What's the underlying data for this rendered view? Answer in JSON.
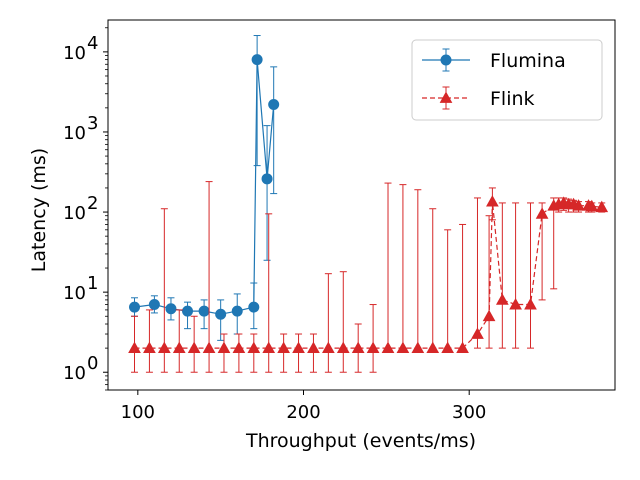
{
  "chart_data": {
    "type": "line",
    "xlabel": "Throughput (events/ms)",
    "ylabel": "Latency (ms)",
    "xlim": [
      82,
      388
    ],
    "ylim": [
      0.6,
      25000
    ],
    "yscale": "log",
    "xticks": [
      100,
      200,
      300
    ],
    "xtick_labels": [
      "100",
      "200",
      "300"
    ],
    "yticks": [
      1,
      10,
      100,
      1000,
      10000
    ],
    "ytick_labels": [
      "10",
      "10",
      "10",
      "10",
      "10"
    ],
    "ytick_exponents": [
      "0",
      "1",
      "2",
      "3",
      "4"
    ],
    "grid": false,
    "legend_position": "top-right",
    "series": [
      {
        "name": "Flumina",
        "color": "#1f77b4",
        "linestyle": "solid",
        "marker": "circle",
        "points": [
          {
            "x": 98,
            "y": 6.5,
            "lo": 5.0,
            "hi": 8.5
          },
          {
            "x": 110,
            "y": 7.0,
            "lo": 5.5,
            "hi": 9.0
          },
          {
            "x": 120,
            "y": 6.2,
            "lo": 4.5,
            "hi": 8.5
          },
          {
            "x": 130,
            "y": 5.8,
            "lo": 3.5,
            "hi": 7.5
          },
          {
            "x": 140,
            "y": 5.8,
            "lo": 3.5,
            "hi": 8.0
          },
          {
            "x": 150,
            "y": 5.3,
            "lo": 2.5,
            "hi": 8.0
          },
          {
            "x": 160,
            "y": 5.8,
            "lo": 3.0,
            "hi": 9.5
          },
          {
            "x": 170,
            "y": 6.5,
            "lo": 3.5,
            "hi": 13
          },
          {
            "x": 172,
            "y": 8000,
            "lo": 380,
            "hi": 16000
          },
          {
            "x": 178,
            "y": 260,
            "lo": 25,
            "hi": 1200
          },
          {
            "x": 182,
            "y": 2200,
            "lo": 170,
            "hi": 6500
          }
        ]
      },
      {
        "name": "Flink",
        "color": "#d62728",
        "linestyle": "dashed",
        "marker": "triangle",
        "points": [
          {
            "x": 98,
            "y": 2,
            "lo": 1,
            "hi": 5
          },
          {
            "x": 107,
            "y": 2,
            "lo": 1,
            "hi": 6
          },
          {
            "x": 116,
            "y": 2,
            "lo": 1,
            "hi": 110
          },
          {
            "x": 125,
            "y": 2,
            "lo": 1,
            "hi": 6
          },
          {
            "x": 134,
            "y": 2,
            "lo": 1,
            "hi": 5
          },
          {
            "x": 143,
            "y": 2,
            "lo": 1,
            "hi": 240
          },
          {
            "x": 152,
            "y": 2,
            "lo": 1,
            "hi": 3
          },
          {
            "x": 161,
            "y": 2,
            "lo": 1,
            "hi": 3
          },
          {
            "x": 170,
            "y": 2,
            "lo": 1,
            "hi": 3
          },
          {
            "x": 179,
            "y": 2,
            "lo": 1,
            "hi": 95
          },
          {
            "x": 188,
            "y": 2,
            "lo": 1,
            "hi": 3
          },
          {
            "x": 197,
            "y": 2,
            "lo": 1,
            "hi": 3
          },
          {
            "x": 206,
            "y": 2,
            "lo": 1,
            "hi": 3
          },
          {
            "x": 215,
            "y": 2,
            "lo": 1,
            "hi": 17
          },
          {
            "x": 224,
            "y": 2,
            "lo": 1,
            "hi": 18
          },
          {
            "x": 233,
            "y": 2,
            "lo": 1,
            "hi": 4
          },
          {
            "x": 242,
            "y": 2,
            "lo": 1,
            "hi": 7
          },
          {
            "x": 251,
            "y": 2,
            "lo": 2,
            "hi": 230
          },
          {
            "x": 260,
            "y": 2,
            "lo": 2,
            "hi": 220
          },
          {
            "x": 269,
            "y": 2,
            "lo": 2,
            "hi": 190
          },
          {
            "x": 278,
            "y": 2,
            "lo": 2,
            "hi": 110
          },
          {
            "x": 287,
            "y": 2,
            "lo": 2,
            "hi": 60
          },
          {
            "x": 296,
            "y": 2,
            "lo": 2,
            "hi": 70
          },
          {
            "x": 305,
            "y": 3,
            "lo": 2,
            "hi": 150
          },
          {
            "x": 312,
            "y": 5,
            "lo": 2,
            "hi": 90
          },
          {
            "x": 314,
            "y": 135,
            "lo": 80,
            "hi": 200
          },
          {
            "x": 320,
            "y": 8,
            "lo": 2,
            "hi": 130
          },
          {
            "x": 328,
            "y": 7,
            "lo": 2,
            "hi": 130
          },
          {
            "x": 337,
            "y": 7,
            "lo": 2,
            "hi": 130
          },
          {
            "x": 344,
            "y": 95,
            "lo": 8,
            "hi": 130
          },
          {
            "x": 351,
            "y": 120,
            "lo": 11,
            "hi": 150
          },
          {
            "x": 354,
            "y": 125,
            "lo": 100,
            "hi": 150
          },
          {
            "x": 357,
            "y": 130,
            "lo": 105,
            "hi": 150
          },
          {
            "x": 360,
            "y": 125,
            "lo": 100,
            "hi": 145
          },
          {
            "x": 363,
            "y": 125,
            "lo": 100,
            "hi": 140
          },
          {
            "x": 366,
            "y": 120,
            "lo": 100,
            "hi": 135
          },
          {
            "x": 372,
            "y": 120,
            "lo": 100,
            "hi": 135
          },
          {
            "x": 374,
            "y": 118,
            "lo": 100,
            "hi": 130
          },
          {
            "x": 380,
            "y": 115,
            "lo": 100,
            "hi": 130
          }
        ]
      }
    ]
  }
}
